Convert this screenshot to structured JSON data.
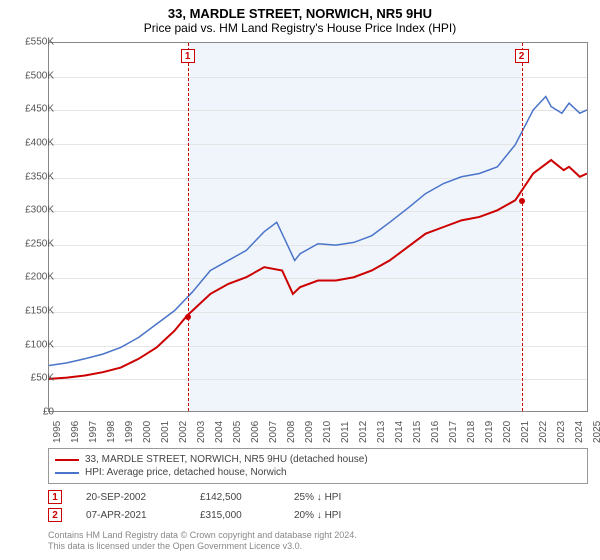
{
  "title": "33, MARDLE STREET, NORWICH, NR5 9HU",
  "subtitle": "Price paid vs. HM Land Registry's House Price Index (HPI)",
  "chart": {
    "type": "line",
    "background_color": "#ffffff",
    "grid_color": "#e5e5e5",
    "ylim": [
      0,
      550000
    ],
    "ytick_step": 50000,
    "yticks": [
      "£0",
      "£50K",
      "£100K",
      "£150K",
      "£200K",
      "£250K",
      "£300K",
      "£350K",
      "£400K",
      "£450K",
      "£500K",
      "£550K"
    ],
    "xyears": [
      1995,
      1996,
      1997,
      1998,
      1999,
      2000,
      2001,
      2002,
      2003,
      2004,
      2005,
      2006,
      2007,
      2008,
      2009,
      2010,
      2011,
      2012,
      2013,
      2014,
      2015,
      2016,
      2017,
      2018,
      2019,
      2020,
      2021,
      2022,
      2023,
      2024,
      2025
    ],
    "shade_start_year": 2002.7,
    "shade_end_year": 2021.25,
    "series": [
      {
        "name": "property",
        "color": "#cc0000",
        "width": 2,
        "label": "33, MARDLE STREET, NORWICH, NR5 9HU (detached house)",
        "points": [
          [
            1995,
            48000
          ],
          [
            1996,
            50000
          ],
          [
            1997,
            53000
          ],
          [
            1998,
            58000
          ],
          [
            1999,
            65000
          ],
          [
            2000,
            78000
          ],
          [
            2001,
            95000
          ],
          [
            2002,
            120000
          ],
          [
            2002.7,
            142500
          ],
          [
            2003,
            150000
          ],
          [
            2004,
            175000
          ],
          [
            2005,
            190000
          ],
          [
            2006,
            200000
          ],
          [
            2007,
            215000
          ],
          [
            2008,
            210000
          ],
          [
            2008.6,
            175000
          ],
          [
            2009,
            185000
          ],
          [
            2010,
            195000
          ],
          [
            2011,
            195000
          ],
          [
            2012,
            200000
          ],
          [
            2013,
            210000
          ],
          [
            2014,
            225000
          ],
          [
            2015,
            245000
          ],
          [
            2016,
            265000
          ],
          [
            2017,
            275000
          ],
          [
            2018,
            285000
          ],
          [
            2019,
            290000
          ],
          [
            2020,
            300000
          ],
          [
            2021,
            315000
          ],
          [
            2022,
            355000
          ],
          [
            2023,
            375000
          ],
          [
            2023.7,
            360000
          ],
          [
            2024,
            365000
          ],
          [
            2024.6,
            350000
          ],
          [
            2025,
            355000
          ]
        ]
      },
      {
        "name": "hpi",
        "color": "#4a74c9",
        "width": 1.5,
        "label": "HPI: Average price, detached house, Norwich",
        "points": [
          [
            1995,
            68000
          ],
          [
            1996,
            72000
          ],
          [
            1997,
            78000
          ],
          [
            1998,
            85000
          ],
          [
            1999,
            95000
          ],
          [
            2000,
            110000
          ],
          [
            2001,
            130000
          ],
          [
            2002,
            150000
          ],
          [
            2003,
            178000
          ],
          [
            2004,
            210000
          ],
          [
            2005,
            225000
          ],
          [
            2006,
            240000
          ],
          [
            2007,
            268000
          ],
          [
            2007.7,
            282000
          ],
          [
            2008,
            265000
          ],
          [
            2008.7,
            225000
          ],
          [
            2009,
            235000
          ],
          [
            2010,
            250000
          ],
          [
            2011,
            248000
          ],
          [
            2012,
            252000
          ],
          [
            2013,
            262000
          ],
          [
            2014,
            282000
          ],
          [
            2015,
            303000
          ],
          [
            2016,
            325000
          ],
          [
            2017,
            340000
          ],
          [
            2018,
            350000
          ],
          [
            2019,
            355000
          ],
          [
            2020,
            365000
          ],
          [
            2021,
            398000
          ],
          [
            2022,
            450000
          ],
          [
            2022.7,
            470000
          ],
          [
            2023,
            455000
          ],
          [
            2023.6,
            445000
          ],
          [
            2024,
            460000
          ],
          [
            2024.6,
            445000
          ],
          [
            2025,
            450000
          ]
        ]
      }
    ],
    "sale_markers": [
      {
        "n": "1",
        "year": 2002.7,
        "value": 142500
      },
      {
        "n": "2",
        "year": 2021.25,
        "value": 315000
      }
    ]
  },
  "sales": [
    {
      "n": "1",
      "date": "20-SEP-2002",
      "price": "£142,500",
      "diff": "25% ↓ HPI"
    },
    {
      "n": "2",
      "date": "07-APR-2021",
      "price": "£315,000",
      "diff": "20% ↓ HPI"
    }
  ],
  "footer": {
    "line1": "Contains HM Land Registry data © Crown copyright and database right 2024.",
    "line2": "This data is licensed under the Open Government Licence v3.0."
  }
}
